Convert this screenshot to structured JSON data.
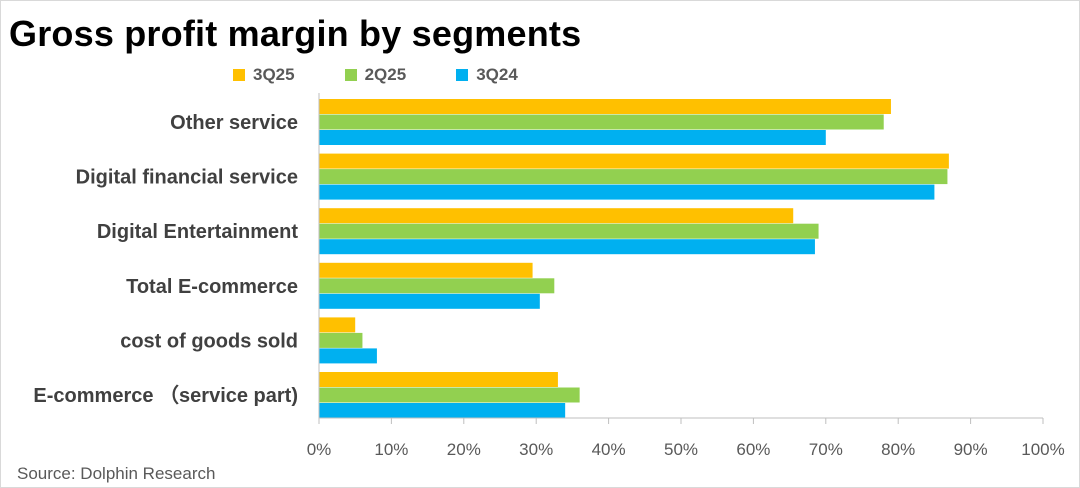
{
  "title": "Gross profit margin by segments",
  "source": "Source: Dolphin Research",
  "chart_data": {
    "type": "bar",
    "orientation": "horizontal",
    "categories": [
      "Other service",
      "Digital financial service",
      "Digital Entertainment",
      "Total E-commerce",
      "cost of goods sold",
      "E-commerce （service part)"
    ],
    "series": [
      {
        "name": "3Q25",
        "color": "#FFC000",
        "values": [
          79,
          87,
          65.5,
          29.5,
          5,
          33
        ]
      },
      {
        "name": "2Q25",
        "color": "#92D050",
        "values": [
          78,
          86.8,
          69,
          32.5,
          6,
          36
        ]
      },
      {
        "name": "3Q24",
        "color": "#00B0F0",
        "values": [
          70,
          85,
          68.5,
          30.5,
          8,
          34
        ]
      }
    ],
    "xlim": [
      0,
      1
    ],
    "xticks": [
      "0%",
      "10%",
      "20%",
      "30%",
      "40%",
      "50%",
      "60%",
      "70%",
      "80%",
      "90%",
      "100%"
    ],
    "value_unit": "percent",
    "grid": false,
    "legend_position": "top-left"
  }
}
